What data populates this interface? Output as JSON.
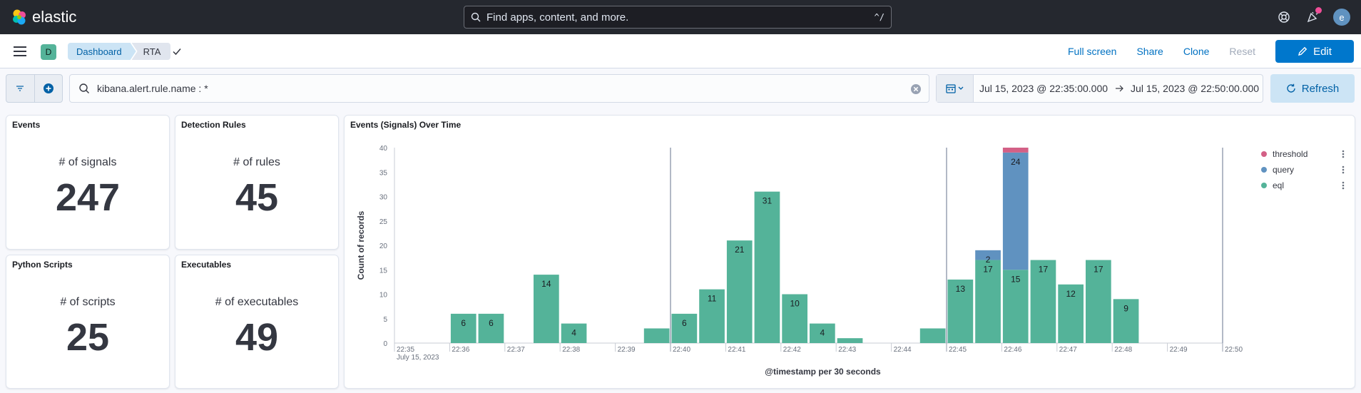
{
  "header": {
    "brand": "elastic",
    "search_placeholder": "Find apps, content, and more.",
    "search_shortcut": "^/",
    "avatar_initial": "e"
  },
  "appbar": {
    "space_initial": "D",
    "breadcrumbs": [
      "Dashboard",
      "RTA"
    ],
    "links": {
      "full_screen": "Full screen",
      "share": "Share",
      "clone": "Clone",
      "reset": "Reset",
      "edit": "Edit"
    }
  },
  "query": {
    "text": "kibana.alert.rule.name : *",
    "date_start": "Jul 15, 2023 @ 22:35:00.000",
    "date_end": "Jul 15, 2023 @ 22:50:00.000",
    "refresh": "Refresh"
  },
  "metrics": [
    {
      "title": "Events",
      "label": "# of signals",
      "value": "247"
    },
    {
      "title": "Detection Rules",
      "label": "# of rules",
      "value": "45"
    },
    {
      "title": "Python Scripts",
      "label": "# of scripts",
      "value": "25"
    },
    {
      "title": "Executables",
      "label": "# of executables",
      "value": "49"
    }
  ],
  "chart_title": "Events (Signals) Over Time",
  "chart_data": {
    "type": "bar",
    "stacked": true,
    "title": "Events (Signals) Over Time",
    "xlabel": "@timestamp per 30 seconds",
    "ylabel": "Count of records",
    "ylim": [
      0,
      40
    ],
    "yticks": [
      0,
      5,
      10,
      15,
      20,
      25,
      30,
      35,
      40
    ],
    "x_ticks": [
      "22:35",
      "22:36",
      "22:37",
      "22:38",
      "22:39",
      "22:40",
      "22:41",
      "22:42",
      "22:43",
      "22:44",
      "22:45",
      "22:46",
      "22:47",
      "22:48",
      "22:49",
      "22:50"
    ],
    "x_sublabel": "July 15, 2023",
    "legend_position": "right",
    "colors": {
      "eql": "#54b399",
      "query": "#6092c0",
      "threshold": "#d36086"
    },
    "legend": [
      "threshold",
      "query",
      "eql"
    ],
    "x": [
      "22:35:00",
      "22:35:30",
      "22:36:00",
      "22:36:30",
      "22:37:00",
      "22:37:30",
      "22:38:00",
      "22:38:30",
      "22:39:00",
      "22:39:30",
      "22:40:00",
      "22:40:30",
      "22:41:00",
      "22:41:30",
      "22:42:00",
      "22:42:30",
      "22:43:00",
      "22:43:30",
      "22:44:00",
      "22:44:30",
      "22:45:00",
      "22:45:30",
      "22:46:00",
      "22:46:30",
      "22:47:00",
      "22:47:30",
      "22:48:00",
      "22:48:30",
      "22:49:00",
      "22:49:30"
    ],
    "series": [
      {
        "name": "eql",
        "values": [
          0,
          0,
          6,
          6,
          0,
          14,
          4,
          0,
          0,
          3,
          6,
          11,
          21,
          31,
          10,
          4,
          1,
          0,
          0,
          3,
          13,
          17,
          15,
          17,
          12,
          17,
          9,
          0,
          0,
          0
        ]
      },
      {
        "name": "query",
        "values": [
          0,
          0,
          0,
          0,
          0,
          0,
          0,
          0,
          0,
          0,
          0,
          0,
          0,
          0,
          0,
          0,
          0,
          0,
          0,
          0,
          0,
          2,
          24,
          0,
          0,
          0,
          0,
          0,
          0,
          0
        ]
      },
      {
        "name": "threshold",
        "values": [
          0,
          0,
          0,
          0,
          0,
          0,
          0,
          0,
          0,
          0,
          0,
          0,
          0,
          0,
          0,
          0,
          0,
          0,
          0,
          0,
          0,
          0,
          1,
          0,
          0,
          0,
          0,
          0,
          0,
          0
        ]
      }
    ],
    "data_labels": [
      {
        "series": "eql",
        "index": 2,
        "text": "6"
      },
      {
        "series": "eql",
        "index": 3,
        "text": "6"
      },
      {
        "series": "eql",
        "index": 5,
        "text": "14"
      },
      {
        "series": "eql",
        "index": 6,
        "text": "4"
      },
      {
        "series": "eql",
        "index": 10,
        "text": "6"
      },
      {
        "series": "eql",
        "index": 11,
        "text": "11"
      },
      {
        "series": "eql",
        "index": 12,
        "text": "21"
      },
      {
        "series": "eql",
        "index": 13,
        "text": "31"
      },
      {
        "series": "eql",
        "index": 14,
        "text": "10"
      },
      {
        "series": "eql",
        "index": 15,
        "text": "4"
      },
      {
        "series": "eql",
        "index": 20,
        "text": "13"
      },
      {
        "series": "eql",
        "index": 21,
        "text": "17"
      },
      {
        "series": "query",
        "index": 21,
        "text": "2"
      },
      {
        "series": "eql",
        "index": 22,
        "text": "15"
      },
      {
        "series": "query",
        "index": 22,
        "text": "24"
      },
      {
        "series": "eql",
        "index": 23,
        "text": "17"
      },
      {
        "series": "eql",
        "index": 24,
        "text": "12"
      },
      {
        "series": "eql",
        "index": 25,
        "text": "17"
      },
      {
        "series": "eql",
        "index": 26,
        "text": "9"
      }
    ],
    "vertical_markers": [
      "22:40",
      "22:45",
      "22:50"
    ]
  },
  "icons": {
    "search": "search-icon",
    "help": "help-icon",
    "news": "newsfeed-icon",
    "menu": "hamburger-menu-icon",
    "check": "check-icon",
    "pencil": "pencil-icon",
    "filter": "filter-icon",
    "add": "plus-circle-icon",
    "calendar": "calendar-icon",
    "clear": "clear-icon",
    "arrow": "arrow-right-icon",
    "refresh": "refresh-icon"
  }
}
